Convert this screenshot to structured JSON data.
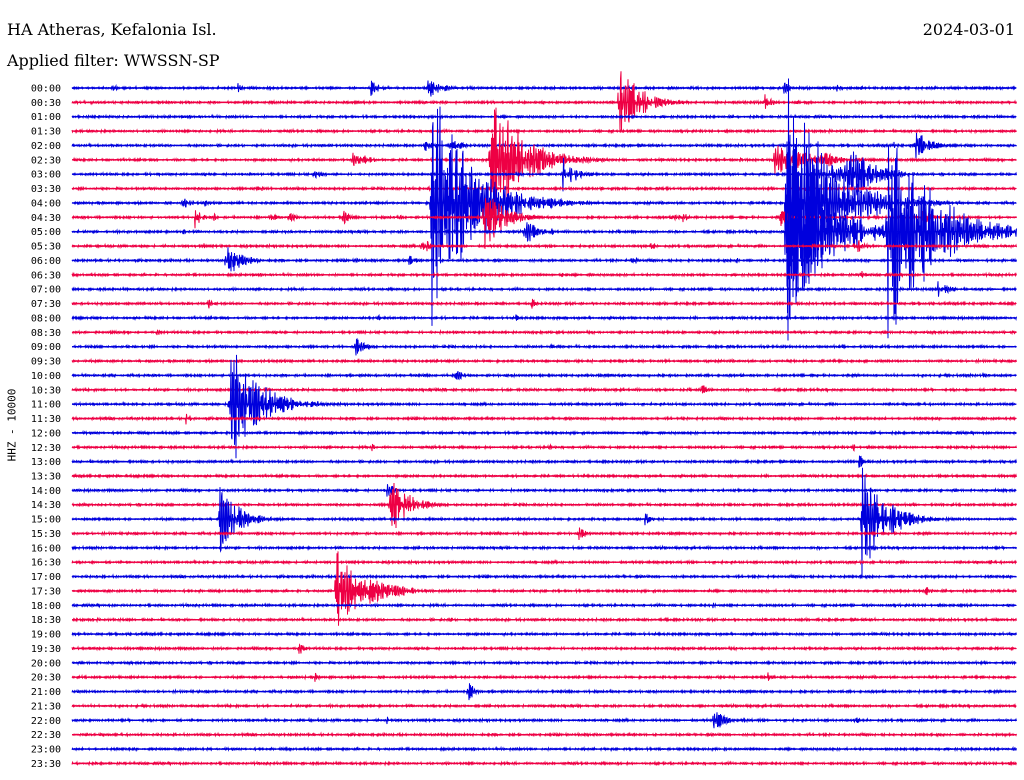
{
  "header": {
    "station": "HA Atheras, Kefalonia Isl.",
    "date": "2024-03-01",
    "filter": "Applied filter: WWSSN-SP"
  },
  "chart_data": {
    "type": "line",
    "ylabel": "HHZ - 10000",
    "series_colors": [
      "#0000dd",
      "#ee0044"
    ],
    "rows": [
      "00:00",
      "00:30",
      "01:00",
      "01:30",
      "02:00",
      "02:30",
      "03:00",
      "03:30",
      "04:00",
      "04:30",
      "05:00",
      "05:30",
      "06:00",
      "06:30",
      "07:00",
      "07:30",
      "08:00",
      "08:30",
      "09:00",
      "09:30",
      "10:00",
      "10:30",
      "11:00",
      "11:30",
      "12:00",
      "12:30",
      "13:00",
      "13:30",
      "14:00",
      "14:30",
      "15:00",
      "15:30",
      "16:00",
      "16:30",
      "17:00",
      "17:30",
      "18:00",
      "18:30",
      "19:00",
      "19:30",
      "20:00",
      "20:30",
      "21:00",
      "21:30",
      "22:00",
      "22:30",
      "23:00",
      "23:30"
    ],
    "x_range_minutes": [
      0,
      30
    ],
    "events": [
      {
        "row": 0,
        "t": 1.3,
        "amp": 5,
        "dur": 0.4
      },
      {
        "row": 0,
        "t": 5.2,
        "amp": 7,
        "dur": 0.5
      },
      {
        "row": 0,
        "t": 9.5,
        "amp": 8,
        "dur": 0.7
      },
      {
        "row": 0,
        "t": 11.3,
        "amp": 14,
        "dur": 0.9
      },
      {
        "row": 0,
        "t": 22.6,
        "amp": 8,
        "dur": 0.4
      },
      {
        "row": 0,
        "t": 24.3,
        "amp": 5,
        "dur": 0.3
      },
      {
        "row": 0,
        "t": 25.0,
        "amp": 5,
        "dur": 0.3
      },
      {
        "row": 1,
        "t": 17.4,
        "amp": 40,
        "dur": 1.4
      },
      {
        "row": 1,
        "t": 22.0,
        "amp": 10,
        "dur": 0.5
      },
      {
        "row": 1,
        "t": 23.0,
        "amp": 5,
        "dur": 0.3
      },
      {
        "row": 3,
        "t": 28.0,
        "amp": 3,
        "dur": 0.3
      },
      {
        "row": 4,
        "t": 11.2,
        "amp": 7,
        "dur": 0.5
      },
      {
        "row": 4,
        "t": 12.0,
        "amp": 10,
        "dur": 0.7
      },
      {
        "row": 4,
        "t": 26.1,
        "amp": 5,
        "dur": 0.4
      },
      {
        "row": 4,
        "t": 26.8,
        "amp": 18,
        "dur": 0.9
      },
      {
        "row": 5,
        "t": 8.9,
        "amp": 12,
        "dur": 0.9
      },
      {
        "row": 5,
        "t": 13.3,
        "amp": 70,
        "dur": 2.2
      },
      {
        "row": 5,
        "t": 21.2,
        "amp": 5,
        "dur": 0.3
      },
      {
        "row": 5,
        "t": 22.3,
        "amp": 16,
        "dur": 2.8
      },
      {
        "row": 5,
        "t": 23.9,
        "amp": 10,
        "dur": 1.1
      },
      {
        "row": 6,
        "t": 7.7,
        "amp": 8,
        "dur": 0.5
      },
      {
        "row": 6,
        "t": 15.6,
        "amp": 18,
        "dur": 0.9
      },
      {
        "row": 6,
        "t": 23.7,
        "amp": 8,
        "dur": 0.6
      },
      {
        "row": 6,
        "t": 24.1,
        "amp": 16,
        "dur": 1.2
      },
      {
        "row": 6,
        "t": 24.6,
        "amp": 36,
        "dur": 1.6
      },
      {
        "row": 6,
        "t": 25.6,
        "amp": 6,
        "dur": 0.4
      },
      {
        "row": 7,
        "t": 5.9,
        "amp": 6,
        "dur": 0.4
      },
      {
        "row": 7,
        "t": 11.3,
        "amp": 4,
        "dur": 0.3
      },
      {
        "row": 7,
        "t": 16.8,
        "amp": 3,
        "dur": 0.3
      },
      {
        "row": 7,
        "t": 23.3,
        "amp": 6,
        "dur": 0.4
      },
      {
        "row": 8,
        "t": 3.5,
        "amp": 8,
        "dur": 0.5
      },
      {
        "row": 8,
        "t": 4.2,
        "amp": 5,
        "dur": 0.3
      },
      {
        "row": 8,
        "t": 11.4,
        "amp": 130,
        "dur": 2.6
      },
      {
        "row": 8,
        "t": 22.7,
        "amp": 150,
        "dur": 2.6
      },
      {
        "row": 8,
        "t": 23.6,
        "amp": 28,
        "dur": 1.4
      },
      {
        "row": 8,
        "t": 24.8,
        "amp": 18,
        "dur": 1.0
      },
      {
        "row": 8,
        "t": 25.8,
        "amp": 8,
        "dur": 0.6
      },
      {
        "row": 9,
        "t": 3.9,
        "amp": 12,
        "dur": 0.5
      },
      {
        "row": 9,
        "t": 4.5,
        "amp": 5,
        "dur": 0.3
      },
      {
        "row": 9,
        "t": 6.3,
        "amp": 7,
        "dur": 0.4
      },
      {
        "row": 9,
        "t": 6.9,
        "amp": 7,
        "dur": 0.4
      },
      {
        "row": 9,
        "t": 8.6,
        "amp": 10,
        "dur": 0.4
      },
      {
        "row": 9,
        "t": 10.4,
        "amp": 4,
        "dur": 0.3
      },
      {
        "row": 9,
        "t": 13.1,
        "amp": 40,
        "dur": 1.2
      },
      {
        "row": 9,
        "t": 19.1,
        "amp": 7,
        "dur": 0.4
      },
      {
        "row": 9,
        "t": 19.4,
        "amp": 7,
        "dur": 0.4
      },
      {
        "row": 9,
        "t": 22.5,
        "amp": 12,
        "dur": 0.5
      },
      {
        "row": 9,
        "t": 27.0,
        "amp": 14,
        "dur": 0.5
      },
      {
        "row": 10,
        "t": 3.5,
        "amp": 5,
        "dur": 0.3
      },
      {
        "row": 10,
        "t": 14.4,
        "amp": 16,
        "dur": 0.7
      },
      {
        "row": 10,
        "t": 15.2,
        "amp": 5,
        "dur": 0.3
      },
      {
        "row": 10,
        "t": 22.7,
        "amp": 120,
        "dur": 2.4
      },
      {
        "row": 10,
        "t": 24.0,
        "amp": 6,
        "dur": 0.4
      },
      {
        "row": 10,
        "t": 25.9,
        "amp": 120,
        "dur": 3.0
      },
      {
        "row": 11,
        "t": 4.1,
        "amp": 6,
        "dur": 0.3
      },
      {
        "row": 11,
        "t": 11.1,
        "amp": 12,
        "dur": 0.5
      },
      {
        "row": 11,
        "t": 18.4,
        "amp": 6,
        "dur": 0.3
      },
      {
        "row": 11,
        "t": 23.5,
        "amp": 4,
        "dur": 0.3
      },
      {
        "row": 11,
        "t": 24.9,
        "amp": 10,
        "dur": 0.5
      },
      {
        "row": 12,
        "t": 4.9,
        "amp": 18,
        "dur": 1.1
      },
      {
        "row": 12,
        "t": 9.0,
        "amp": 5,
        "dur": 0.3
      },
      {
        "row": 12,
        "t": 10.7,
        "amp": 8,
        "dur": 0.4
      },
      {
        "row": 12,
        "t": 17.8,
        "amp": 7,
        "dur": 0.4
      },
      {
        "row": 12,
        "t": 21.1,
        "amp": 5,
        "dur": 0.3
      },
      {
        "row": 13,
        "t": 15.5,
        "amp": 6,
        "dur": 0.3
      },
      {
        "row": 13,
        "t": 25.0,
        "amp": 7,
        "dur": 0.4
      },
      {
        "row": 14,
        "t": 27.5,
        "amp": 12,
        "dur": 0.7
      },
      {
        "row": 15,
        "t": 4.3,
        "amp": 7,
        "dur": 0.4
      },
      {
        "row": 15,
        "t": 14.6,
        "amp": 6,
        "dur": 0.3
      },
      {
        "row": 16,
        "t": 9.7,
        "amp": 5,
        "dur": 0.3
      },
      {
        "row": 16,
        "t": 14.1,
        "amp": 5,
        "dur": 0.3
      },
      {
        "row": 17,
        "t": 2.7,
        "amp": 4,
        "dur": 0.3
      },
      {
        "row": 18,
        "t": 9.0,
        "amp": 12,
        "dur": 0.6
      },
      {
        "row": 18,
        "t": 15.2,
        "amp": 4,
        "dur": 0.5
      },
      {
        "row": 20,
        "t": 12.2,
        "amp": 8,
        "dur": 0.4
      },
      {
        "row": 20,
        "t": 28.9,
        "amp": 5,
        "dur": 0.3
      },
      {
        "row": 21,
        "t": 11.7,
        "amp": 5,
        "dur": 0.3
      },
      {
        "row": 21,
        "t": 20.0,
        "amp": 7,
        "dur": 0.4
      },
      {
        "row": 22,
        "t": 5.0,
        "amp": 75,
        "dur": 1.8
      },
      {
        "row": 22,
        "t": 5.5,
        "amp": 8,
        "dur": 0.6
      },
      {
        "row": 23,
        "t": 3.6,
        "amp": 7,
        "dur": 0.4
      },
      {
        "row": 25,
        "t": 9.5,
        "amp": 5,
        "dur": 0.3
      },
      {
        "row": 25,
        "t": 15.1,
        "amp": 5,
        "dur": 0.3
      },
      {
        "row": 25,
        "t": 24.8,
        "amp": 5,
        "dur": 0.3
      },
      {
        "row": 26,
        "t": 25.0,
        "amp": 8,
        "dur": 0.4
      },
      {
        "row": 28,
        "t": 10.0,
        "amp": 10,
        "dur": 0.5
      },
      {
        "row": 29,
        "t": 10.1,
        "amp": 35,
        "dur": 1.2
      },
      {
        "row": 30,
        "t": 4.7,
        "amp": 35,
        "dur": 1.3
      },
      {
        "row": 30,
        "t": 18.2,
        "amp": 8,
        "dur": 0.4
      },
      {
        "row": 30,
        "t": 25.1,
        "amp": 60,
        "dur": 1.6
      },
      {
        "row": 30,
        "t": 27.3,
        "amp": 4,
        "dur": 0.3
      },
      {
        "row": 31,
        "t": 16.1,
        "amp": 8,
        "dur": 0.5
      },
      {
        "row": 33,
        "t": 29.2,
        "amp": 3,
        "dur": 0.3
      },
      {
        "row": 35,
        "t": 8.4,
        "amp": 45,
        "dur": 2.0
      },
      {
        "row": 35,
        "t": 9.5,
        "amp": 6,
        "dur": 0.8
      },
      {
        "row": 35,
        "t": 27.1,
        "amp": 7,
        "dur": 0.4
      },
      {
        "row": 36,
        "t": 20.3,
        "amp": 5,
        "dur": 0.3
      },
      {
        "row": 37,
        "t": 12.0,
        "amp": 4,
        "dur": 0.3
      },
      {
        "row": 37,
        "t": 18.8,
        "amp": 4,
        "dur": 0.3
      },
      {
        "row": 39,
        "t": 7.2,
        "amp": 8,
        "dur": 0.4
      },
      {
        "row": 41,
        "t": 7.7,
        "amp": 6,
        "dur": 0.3
      },
      {
        "row": 41,
        "t": 22.1,
        "amp": 6,
        "dur": 0.3
      },
      {
        "row": 42,
        "t": 12.6,
        "amp": 10,
        "dur": 0.5
      },
      {
        "row": 44,
        "t": 5.7,
        "amp": 4,
        "dur": 0.3
      },
      {
        "row": 44,
        "t": 10.0,
        "amp": 5,
        "dur": 0.3
      },
      {
        "row": 44,
        "t": 16.3,
        "amp": 3,
        "dur": 0.3
      },
      {
        "row": 44,
        "t": 20.4,
        "amp": 16,
        "dur": 0.6
      },
      {
        "row": 44,
        "t": 21.3,
        "amp": 5,
        "dur": 0.3
      },
      {
        "row": 44,
        "t": 24.9,
        "amp": 5,
        "dur": 0.3
      }
    ]
  }
}
